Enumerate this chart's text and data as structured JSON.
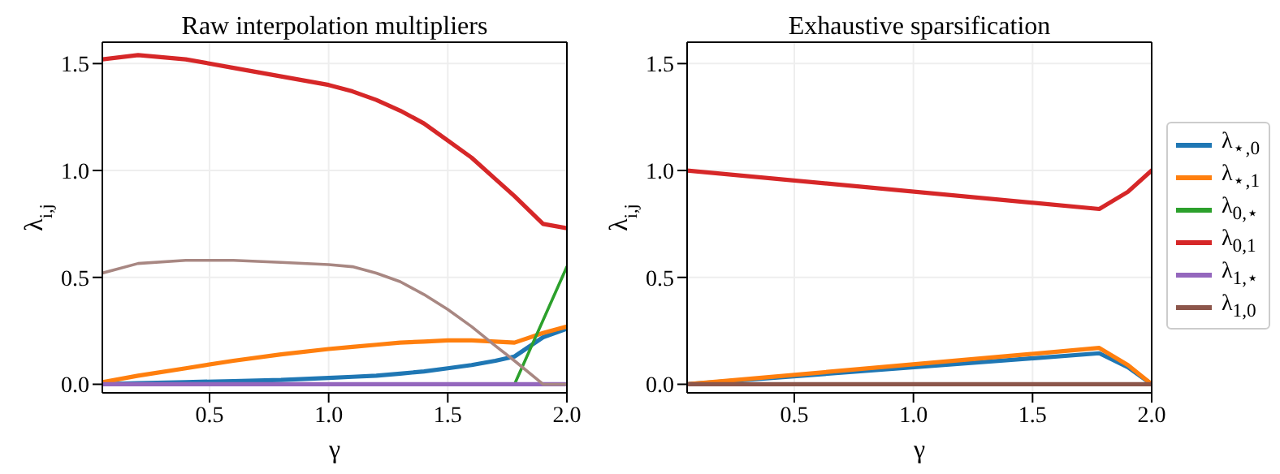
{
  "chart_data": [
    {
      "type": "line",
      "title": "Raw interpolation multipliers",
      "xlabel": "γ",
      "ylabel": "λ$_{i,j}$",
      "x": [
        0.05,
        0.2,
        0.4,
        0.6,
        0.8,
        1.0,
        1.1,
        1.2,
        1.3,
        1.4,
        1.5,
        1.6,
        1.7,
        1.78,
        1.9,
        2.0
      ],
      "series": [
        {
          "color": "#1f77b4",
          "values": [
            0.0,
            0.005,
            0.01,
            0.015,
            0.02,
            0.03,
            0.035,
            0.04,
            0.05,
            0.06,
            0.075,
            0.09,
            0.11,
            0.13,
            0.22,
            0.26
          ]
        },
        {
          "color": "#ff7f0e",
          "values": [
            0.01,
            0.04,
            0.075,
            0.11,
            0.14,
            0.165,
            0.175,
            0.185,
            0.195,
            0.2,
            0.205,
            0.205,
            0.2,
            0.195,
            0.24,
            0.27
          ]
        },
        {
          "color": "#2ca02c",
          "values": [
            null,
            null,
            null,
            null,
            null,
            null,
            null,
            null,
            null,
            null,
            null,
            null,
            null,
            0.0,
            0.3,
            0.55
          ]
        },
        {
          "color": "#d62728",
          "values": [
            1.52,
            1.54,
            1.52,
            1.48,
            1.44,
            1.4,
            1.37,
            1.33,
            1.28,
            1.22,
            1.14,
            1.06,
            0.96,
            0.88,
            0.75,
            0.73
          ]
        },
        {
          "color": "#9467bd",
          "values": [
            0,
            0,
            0,
            0,
            0,
            0,
            0,
            0,
            0,
            0,
            0,
            0,
            0,
            0,
            0,
            0
          ]
        },
        {
          "color": "#a88782",
          "values": [
            0.52,
            0.565,
            0.58,
            0.58,
            0.57,
            0.56,
            0.55,
            0.52,
            0.48,
            0.42,
            0.35,
            0.27,
            0.18,
            0.11,
            0.0,
            0.0
          ]
        }
      ],
      "xlim": [
        0.05,
        2.0
      ],
      "ylim": [
        -0.04,
        1.6
      ],
      "xticks": [
        {
          "value": 0.5,
          "label": "0.5"
        },
        {
          "value": 1.0,
          "label": "1.0"
        },
        {
          "value": 1.5,
          "label": "1.5"
        },
        {
          "value": 2.0,
          "label": "2.0"
        }
      ],
      "yticks": [
        {
          "value": 0,
          "label": "0.0"
        },
        {
          "value": 0.5,
          "label": "0.5"
        },
        {
          "value": 1.0,
          "label": "1.0"
        },
        {
          "value": 1.5,
          "label": "1.5"
        }
      ],
      "grid": true,
      "legend": false
    },
    {
      "type": "line",
      "title": "Exhaustive sparsification",
      "xlabel": "γ",
      "ylabel": "λ$_{i,j}$",
      "x": [
        0.05,
        1.78,
        1.9,
        2.0
      ],
      "series": [
        {
          "name": "λ$_{⋆,0}$",
          "color": "#1f77b4",
          "values": [
            0.0,
            0.145,
            0.08,
            0.0
          ]
        },
        {
          "name": "λ$_{⋆,1}$",
          "color": "#ff7f0e",
          "values": [
            0.0,
            0.17,
            0.09,
            0.0
          ]
        },
        {
          "name": "λ$_{0,⋆}$",
          "color": "#2ca02c",
          "values": [
            null,
            null,
            null,
            null
          ]
        },
        {
          "name": "λ$_{0,1}$",
          "color": "#d62728",
          "values": [
            1.0,
            0.82,
            0.9,
            1.0
          ]
        },
        {
          "name": "λ$_{1,⋆}$",
          "color": "#9467bd",
          "values": [
            null,
            null,
            null,
            null
          ]
        },
        {
          "name": "λ$_{1,0}$",
          "color": "#8c564b",
          "values": [
            0,
            0,
            0,
            0
          ]
        }
      ],
      "xlim": [
        0.05,
        2.0
      ],
      "ylim": [
        -0.04,
        1.6
      ],
      "xticks": [
        {
          "value": 0.5,
          "label": "0.5"
        },
        {
          "value": 1.0,
          "label": "1.0"
        },
        {
          "value": 1.5,
          "label": "1.5"
        },
        {
          "value": 2.0,
          "label": "2.0"
        }
      ],
      "yticks": [
        {
          "value": 0,
          "label": "0.0"
        },
        {
          "value": 0.5,
          "label": "0.5"
        },
        {
          "value": 1.0,
          "label": "1.0"
        },
        {
          "value": 1.5,
          "label": "1.5"
        }
      ],
      "grid": true,
      "legend": "right"
    }
  ]
}
